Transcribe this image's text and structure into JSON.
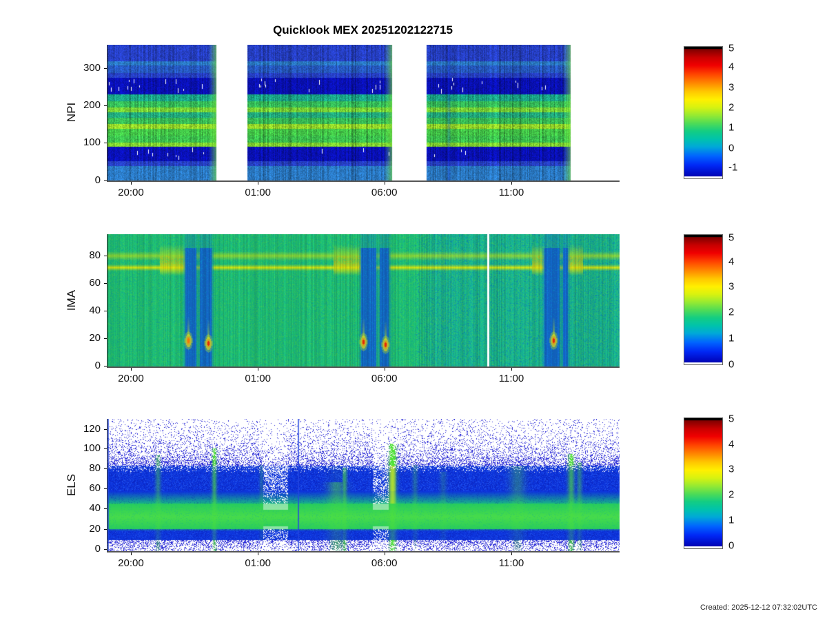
{
  "title": "Quicklook MEX 20251202122715",
  "created_note": "Created: 2025-12-12 07:32:02UTC",
  "x_axis": {
    "ticks": [
      {
        "label": "20:00",
        "f": 0.047
      },
      {
        "label": "01:00",
        "f": 0.295
      },
      {
        "label": "06:00",
        "f": 0.542
      },
      {
        "label": "11:00",
        "f": 0.79
      }
    ]
  },
  "panels": [
    {
      "key": "NPI",
      "ylabel": "NPI",
      "yticks": [
        {
          "label": "0",
          "f": 1.0
        },
        {
          "label": "100",
          "f": 0.721
        },
        {
          "label": "200",
          "f": 0.447
        },
        {
          "label": "300",
          "f": 0.173
        }
      ]
    },
    {
      "key": "IMA",
      "ylabel": "IMA",
      "yticks": [
        {
          "label": "0",
          "f": 0.995
        },
        {
          "label": "20",
          "f": 0.786
        },
        {
          "label": "40",
          "f": 0.578
        },
        {
          "label": "60",
          "f": 0.37
        },
        {
          "label": "80",
          "f": 0.161
        }
      ]
    },
    {
      "key": "ELS",
      "ylabel": "ELS",
      "yticks": [
        {
          "label": "0",
          "f": 0.984
        },
        {
          "label": "20",
          "f": 0.833
        },
        {
          "label": "40",
          "f": 0.677
        },
        {
          "label": "60",
          "f": 0.526
        },
        {
          "label": "80",
          "f": 0.375
        },
        {
          "label": "100",
          "f": 0.224
        },
        {
          "label": "120",
          "f": 0.078
        }
      ]
    }
  ],
  "colorbars": [
    {
      "ticks": [
        {
          "label": "5",
          "f": 0.016
        },
        {
          "label": "4",
          "f": 0.155
        },
        {
          "label": "3",
          "f": 0.311
        },
        {
          "label": "2",
          "f": 0.461
        },
        {
          "label": "1",
          "f": 0.611
        },
        {
          "label": "0",
          "f": 0.767
        },
        {
          "label": "-1",
          "f": 0.912
        }
      ]
    },
    {
      "ticks": [
        {
          "label": "5",
          "f": 0.026
        },
        {
          "label": "4",
          "f": 0.21
        },
        {
          "label": "3",
          "f": 0.4
        },
        {
          "label": "2",
          "f": 0.595
        },
        {
          "label": "1",
          "f": 0.795
        },
        {
          "label": "0",
          "f": 0.995
        }
      ]
    },
    {
      "ticks": [
        {
          "label": "5",
          "f": 0.01
        },
        {
          "label": "4",
          "f": 0.203
        },
        {
          "label": "3",
          "f": 0.395
        },
        {
          "label": "2",
          "f": 0.588
        },
        {
          "label": "1",
          "f": 0.78
        },
        {
          "label": "0",
          "f": 0.973
        }
      ]
    }
  ],
  "paint": {
    "npi": {
      "segments": [
        [
          0.0,
          0.2126
        ],
        [
          0.2732,
          0.5558
        ],
        [
          0.6232,
          0.9044
        ]
      ],
      "bands": [
        [
          0.0,
          0.117,
          "#2a46d8"
        ],
        [
          0.117,
          0.152,
          "#2f86d8"
        ],
        [
          0.152,
          0.208,
          "#2a62d4"
        ],
        [
          0.208,
          0.239,
          "#2a46d8"
        ],
        [
          0.239,
          0.365,
          "#0a12c8"
        ],
        [
          0.365,
          0.416,
          "#1db896"
        ],
        [
          0.416,
          0.457,
          "#3bd062"
        ],
        [
          0.457,
          0.497,
          "#86ea3c"
        ],
        [
          0.497,
          0.538,
          "#25bd8a"
        ],
        [
          0.538,
          0.579,
          "#3ed05e"
        ],
        [
          0.579,
          0.619,
          "#a5ee2e"
        ],
        [
          0.619,
          0.665,
          "#4adb50"
        ],
        [
          0.665,
          0.716,
          "#42d556"
        ],
        [
          0.716,
          0.751,
          "#90ec36"
        ],
        [
          0.751,
          0.853,
          "#0a12c8"
        ],
        [
          0.853,
          0.893,
          "#2a46d8"
        ],
        [
          0.893,
          1.0,
          "#2f86d8"
        ]
      ],
      "edge_color": "#78e63c",
      "edge_width": 12,
      "dark_bands": [
        [
          0.243,
          0.36
        ],
        [
          0.755,
          0.848
        ]
      ],
      "streak": {
        "f": 0.666,
        "w": 3,
        "t": 0.35,
        "color": "#0a20c0"
      }
    },
    "ima": {
      "ymax": 96,
      "base": "#1fc878",
      "base_right": "#16b2a2",
      "right_start": 0.6,
      "noise_cool": "#0a78c8",
      "noise_warm": "#78dc3c",
      "band1": {
        "v": 72,
        "hw": 2.4,
        "color": "#e8ee0a",
        "t": 0.92
      },
      "band2": {
        "v": 80.5,
        "hw": 3.4,
        "color": "#bce81e",
        "t": 0.7
      },
      "blobs": [
        [
          0.101,
          0.151
        ],
        [
          0.441,
          0.495
        ],
        [
          0.828,
          0.852
        ],
        [
          0.898,
          0.928
        ]
      ],
      "dips": [
        [
          0.151,
          0.203
        ],
        [
          0.495,
          0.549
        ],
        [
          0.852,
          0.898
        ]
      ],
      "dip_color": "#1260d8",
      "green_cols": [
        0.176,
        0.528,
        0.885
      ],
      "hooks": [
        {
          "f": 0.158,
          "v": 19,
          "red": 0
        },
        {
          "f": 0.196,
          "v": 17,
          "red": 1
        },
        {
          "f": 0.499,
          "v": 18,
          "red": 1
        },
        {
          "f": 0.543,
          "v": 16,
          "red": 1
        },
        {
          "f": 0.871,
          "v": 19,
          "red": 1
        }
      ],
      "gap": {
        "f": 0.7416,
        "w": 3
      }
    },
    "els": {
      "ymax": 130,
      "blue": "#0d35dd",
      "blue_dark": "#0a1cb0",
      "blue_light": "#3c78ff",
      "teal": "#18b486",
      "green": "#27cc5d",
      "green_bright": "#62e93c",
      "dot": "#2626d6",
      "streak_green": "#50e138",
      "streak_yellow": "#e1eb23",
      "streaks": [
        {
          "f": 0.098,
          "w": 4,
          "h": 95,
          "s": 0.5
        },
        {
          "f": 0.208,
          "w": 3.5,
          "h": 102,
          "s": 0.8
        },
        {
          "f": 0.3,
          "w": 3,
          "h": 85,
          "s": 0.3
        },
        {
          "f": 0.447,
          "w": 13,
          "h": 68,
          "s": 0.6
        },
        {
          "f": 0.462,
          "w": 4,
          "h": 82,
          "s": 0.75
        },
        {
          "f": 0.556,
          "w": 6,
          "h": 106,
          "s": 1.0,
          "yellow": 1
        },
        {
          "f": 0.6,
          "w": 4,
          "h": 85,
          "s": 0.35
        },
        {
          "f": 0.655,
          "w": 5,
          "h": 78,
          "s": 0.25
        },
        {
          "f": 0.8,
          "w": 11,
          "h": 84,
          "s": 0.4
        },
        {
          "f": 0.905,
          "w": 5,
          "h": 96,
          "s": 0.8
        },
        {
          "f": 0.921,
          "w": 4,
          "h": 88,
          "s": 0.5
        }
      ],
      "dropouts": [
        [
          0.303,
          0.352
        ],
        [
          0.518,
          0.548
        ]
      ],
      "blue_col": 0.372
    }
  },
  "chart_data": [
    {
      "type": "heatmap",
      "name": "NPI",
      "ylabel": "NPI",
      "ylim": [
        0,
        360
      ],
      "yticks": [
        0,
        100,
        200,
        300
      ],
      "xtick_labels": [
        "20:00",
        "01:00",
        "06:00",
        "11:00"
      ],
      "colormap": "jet",
      "colorbar_ticks": [
        5,
        4,
        3,
        2,
        1,
        0,
        -1
      ],
      "grid": false,
      "segments_time_frac": [
        [
          0.0,
          0.213
        ],
        [
          0.273,
          0.556
        ],
        [
          0.623,
          0.904
        ]
      ],
      "description": "Neutral particle imager sector-time spectrogram in three measurement segments separated by white data gaps; horizontal banding: dark blue bands at sectors ~45-90 and ~235-285 with white missing-data dashes, bright green and yellow-green bands at sectors ~95-215, medium blue elsewhere; bright green flash column at the end of each segment."
    },
    {
      "type": "heatmap",
      "name": "IMA",
      "ylabel": "IMA",
      "ylim": [
        0,
        96
      ],
      "yticks": [
        0,
        20,
        40,
        60,
        80
      ],
      "xtick_labels": [
        "20:00",
        "01:00",
        "06:00",
        "11:00"
      ],
      "colormap": "jet",
      "colorbar_ticks": [
        5,
        4,
        3,
        2,
        1,
        0
      ],
      "grid": false,
      "description": "Ion mass analyzer spectrogram, continuous coverage; green background with intense yellow double band at channels ~70-85; three blue vertical dropouts near time fractions 0.18, 0.52 and 0.875 (about 22:40, 05:40, 12:45) containing orange-red hotspots at channels ~15-25; thin white data gap at fraction 0.742 (about 10:20); background becomes cyan-tinted after about 06:00."
    },
    {
      "type": "heatmap",
      "name": "ELS",
      "ylabel": "ELS",
      "ylim": [
        0,
        130
      ],
      "yticks": [
        0,
        20,
        40,
        60,
        80,
        100,
        120
      ],
      "xtick_labels": [
        "20:00",
        "01:00",
        "06:00",
        "11:00"
      ],
      "colormap": "jet",
      "colorbar_ticks": [
        5,
        4,
        3,
        2,
        1,
        0
      ],
      "grid": false,
      "description": "Electron spectrometer energy-time spectrogram; white background with blue speckle above channel ~85 and below ~10; solid blue band at channels ~55-85; bright green band at channels ~22-50; vertical green enhancements near time fractions 0.10, 0.21, 0.45, 0.56, 0.80 and 0.91, the one near 0.56 reaching channel ~105 with a yellow core; noisy white dropout regions near fractions 0.32 and 0.53."
    }
  ]
}
